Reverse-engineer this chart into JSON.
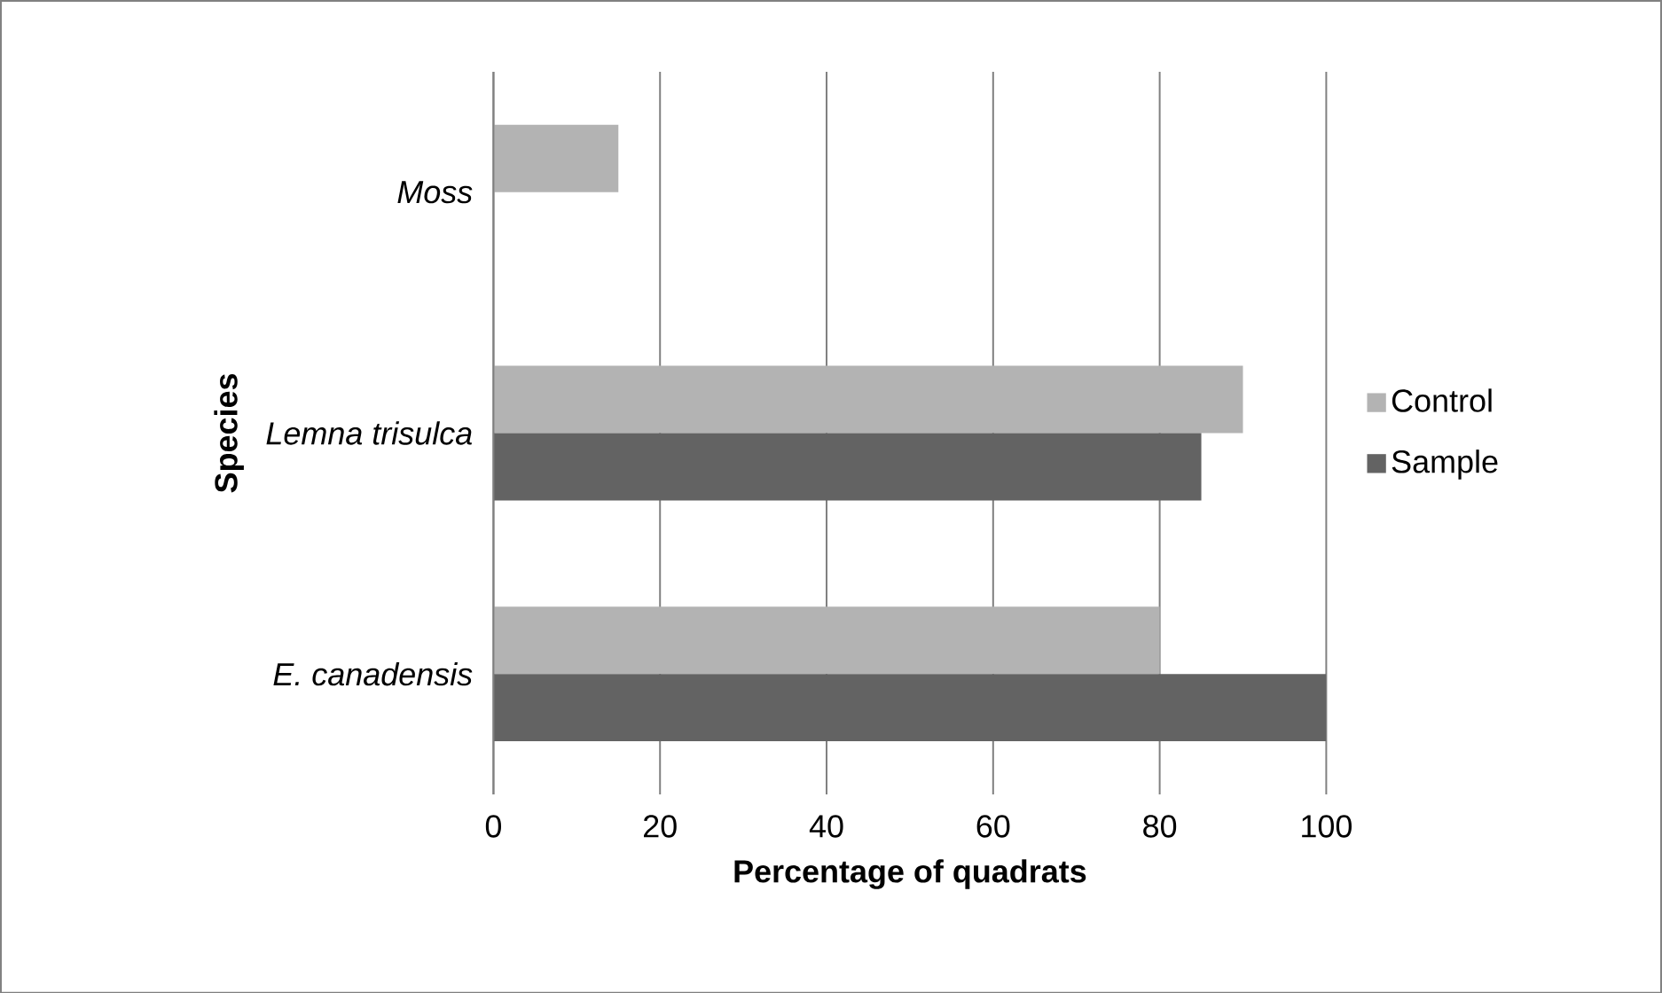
{
  "chart_data": {
    "type": "bar",
    "orientation": "horizontal",
    "xlabel": "Percentage of quadrats",
    "ylabel": "Species",
    "categories": [
      "Moss",
      "Lemna trisulca",
      "E. canadensis"
    ],
    "series": [
      {
        "name": "Control",
        "color": "#b3b3b3",
        "values": [
          15,
          90,
          80
        ]
      },
      {
        "name": "Sample",
        "color": "#636363",
        "values": [
          null,
          85,
          100
        ]
      }
    ],
    "xlim": [
      0,
      100
    ],
    "xticks": [
      0,
      20,
      40,
      60,
      80,
      100
    ],
    "grid": "x",
    "legend": "right"
  }
}
